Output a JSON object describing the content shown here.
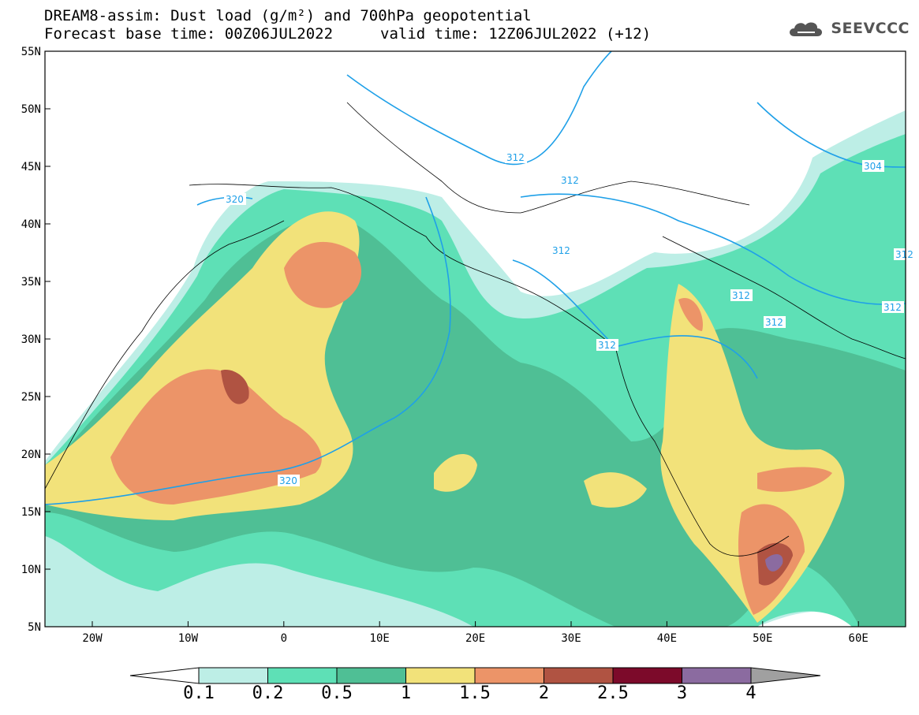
{
  "header": {
    "title_line1": "DREAM8-assim: Dust load (g/m²) and 700hPa geopotential",
    "title_line2_left": "Forecast base time: 00Z06JUL2022",
    "title_line2_right": "valid time: 12Z06JUL2022 (+12)",
    "logo_text": "SEEVCCC"
  },
  "map": {
    "lat_ticks": [
      "55N",
      "50N",
      "45N",
      "40N",
      "35N",
      "30N",
      "25N",
      "20N",
      "15N",
      "10N",
      "5N"
    ],
    "lon_ticks": [
      "20W",
      "10W",
      "0",
      "10E",
      "20E",
      "30E",
      "40E",
      "50E",
      "60E"
    ],
    "contour_labels": [
      "320",
      "312",
      "312",
      "312",
      "312",
      "312",
      "312",
      "320",
      "304",
      "312",
      "312"
    ],
    "contour_color": "#1fa0e8"
  },
  "colorbar": {
    "labels": [
      "0.1",
      "0.2",
      "0.5",
      "1",
      "1.5",
      "2",
      "2.5",
      "3",
      "4"
    ],
    "colors": [
      "#bdeee6",
      "#5ee0b6",
      "#4fbf95",
      "#f2e27a",
      "#ec9468",
      "#b05342",
      "#7c0a2a",
      "#8b6ba0"
    ],
    "end_colors": [
      "#ffffff",
      "#a0a0a0"
    ]
  }
}
